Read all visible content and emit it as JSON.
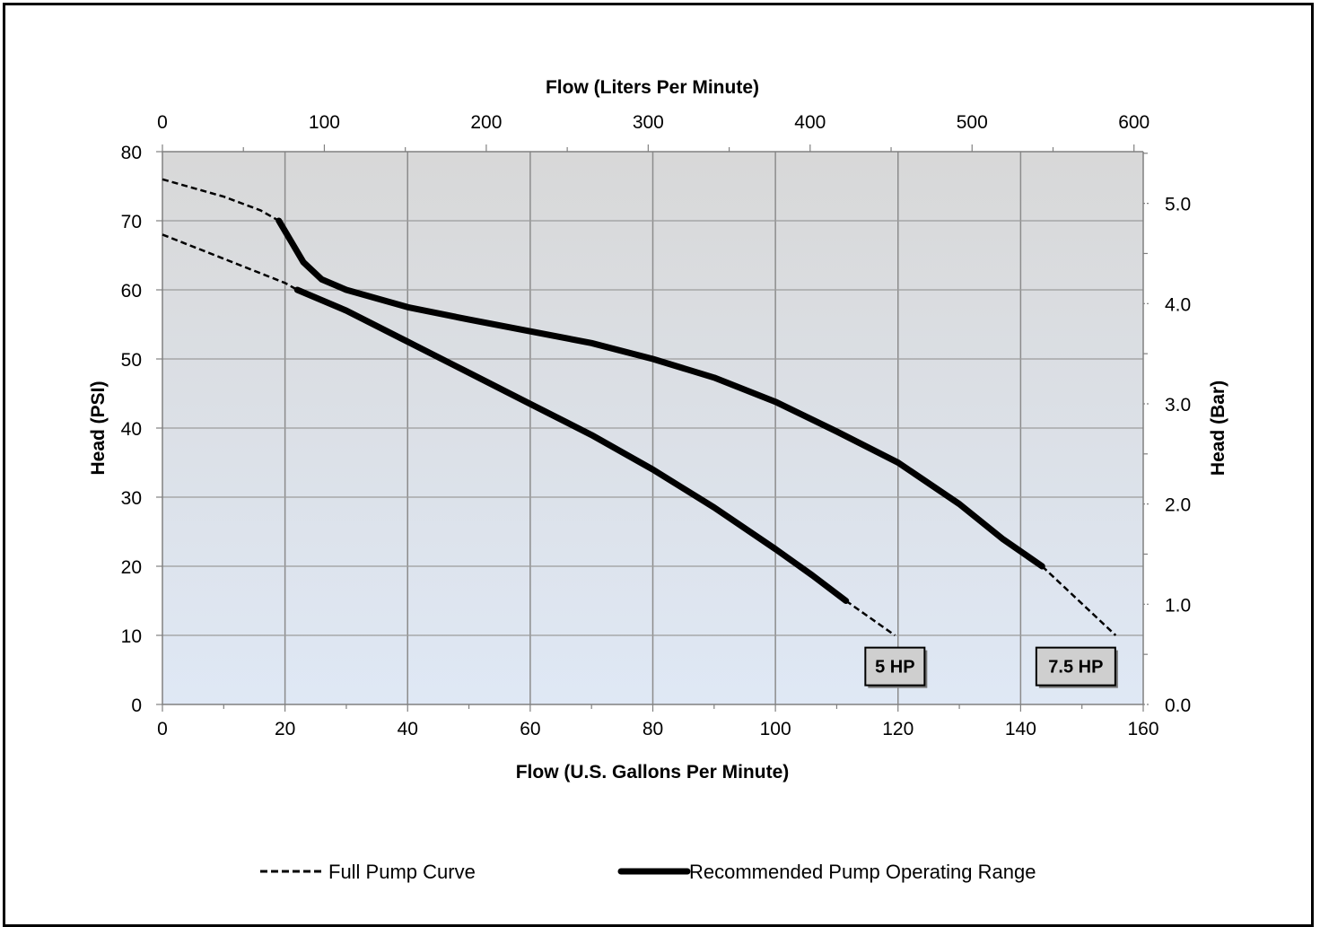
{
  "chart_data": {
    "type": "line",
    "x_bottom": {
      "label": "Flow (U.S. Gallons Per Minute)",
      "min": 0,
      "max": 160,
      "ticks": [
        0,
        20,
        40,
        60,
        80,
        100,
        120,
        140,
        160
      ]
    },
    "x_top": {
      "label": "Flow (Liters Per Minute)",
      "min": 0,
      "max": 605.7,
      "ticks": [
        0,
        100,
        200,
        300,
        400,
        500,
        600
      ]
    },
    "y_left": {
      "label": "Head (PSI)",
      "min": 0,
      "max": 80,
      "ticks": [
        0,
        10,
        20,
        30,
        40,
        50,
        60,
        70,
        80
      ]
    },
    "y_right": {
      "label": "Head (Bar)",
      "min": 0,
      "max": 5.516,
      "ticks": [
        "0.0",
        "1.0",
        "2.0",
        "3.0",
        "4.0",
        "5.0"
      ]
    },
    "grid": "vertical lines at bottom ticks, horizontal lines at left ticks",
    "plot_background": "gradient light gray top to light blue bottom",
    "legend": {
      "position": "bottom",
      "items": [
        {
          "label": "Full Pump Curve",
          "style": "dashed"
        },
        {
          "label": "Recommended Pump Operating Range",
          "style": "solid-thick"
        }
      ]
    },
    "series": [
      {
        "name": "5 HP",
        "full_curve": [
          [
            0,
            68
          ],
          [
            10,
            64.5
          ],
          [
            20,
            61
          ],
          [
            22,
            60
          ]
        ],
        "operating_range": [
          [
            22,
            60
          ],
          [
            30,
            57
          ],
          [
            40,
            52.5
          ],
          [
            50,
            48
          ],
          [
            60,
            43.5
          ],
          [
            70,
            39
          ],
          [
            80,
            34
          ],
          [
            90,
            28.5
          ],
          [
            100,
            22.5
          ],
          [
            106,
            18.7
          ],
          [
            111.5,
            15
          ]
        ],
        "full_curve_tail": [
          [
            111.5,
            15
          ],
          [
            119.5,
            10
          ]
        ]
      },
      {
        "name": "7.5 HP",
        "full_curve": [
          [
            0,
            76
          ],
          [
            10,
            73.5
          ],
          [
            16,
            71.5
          ],
          [
            19,
            70
          ]
        ],
        "operating_range": [
          [
            19,
            70
          ],
          [
            21,
            67
          ],
          [
            23,
            64
          ],
          [
            26,
            61.5
          ],
          [
            30,
            60
          ],
          [
            40,
            57.5
          ],
          [
            50,
            55.7
          ],
          [
            60,
            54
          ],
          [
            70,
            52.3
          ],
          [
            80,
            50
          ],
          [
            90,
            47.3
          ],
          [
            100,
            43.8
          ],
          [
            110,
            39.5
          ],
          [
            120,
            35
          ],
          [
            130,
            29
          ],
          [
            137,
            24
          ],
          [
            143.5,
            20
          ]
        ],
        "full_curve_tail": [
          [
            143.5,
            20
          ],
          [
            155.5,
            10
          ]
        ]
      }
    ],
    "annotations": [
      {
        "text": "5 HP",
        "x": 119.5,
        "y": 5.5
      },
      {
        "text": "7.5 HP",
        "x": 149,
        "y": 5.5
      }
    ]
  }
}
